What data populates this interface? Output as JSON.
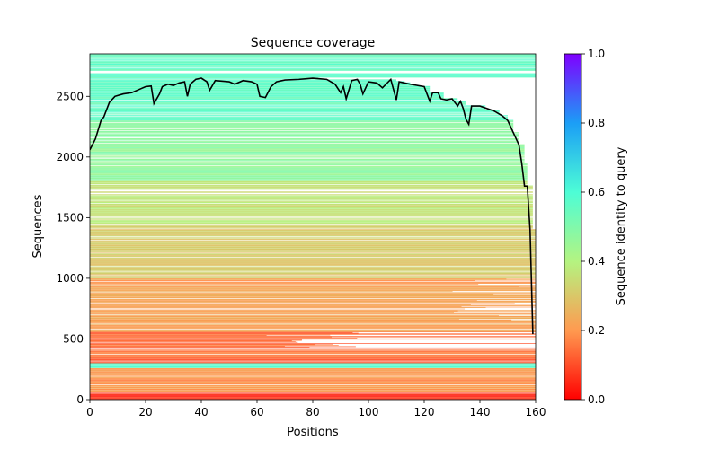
{
  "chart_data": {
    "type": "heatmap",
    "title": "Sequence coverage",
    "xlabel": "Positions",
    "ylabel": "Sequences",
    "xlim": [
      0,
      160
    ],
    "ylim": [
      0,
      2850
    ],
    "xticks": [
      0,
      20,
      40,
      60,
      80,
      100,
      120,
      140,
      160
    ],
    "yticks": [
      0,
      500,
      1000,
      1500,
      2000,
      2500
    ],
    "grid": false,
    "colorbar": {
      "label": "Sequence identity to query",
      "range": [
        0,
        1
      ],
      "ticks": [
        "0.0",
        "0.2",
        "0.4",
        "0.6",
        "0.8",
        "1.0"
      ],
      "colormap": "rainbow_r"
    },
    "identity_bands": [
      {
        "y0": 0,
        "y1": 60,
        "identity": 0.05
      },
      {
        "y0": 60,
        "y1": 260,
        "identity": 0.2
      },
      {
        "y0": 260,
        "y1": 300,
        "identity": 0.6
      },
      {
        "y0": 300,
        "y1": 340,
        "identity": 0.1
      },
      {
        "y0": 340,
        "y1": 420,
        "identity": 0.16
      },
      {
        "y0": 420,
        "y1": 560,
        "identity": 0.13
      },
      {
        "y0": 560,
        "y1": 1000,
        "identity": 0.22
      },
      {
        "y0": 1000,
        "y1": 1450,
        "identity": 0.3
      },
      {
        "y0": 1450,
        "y1": 1800,
        "identity": 0.37
      },
      {
        "y0": 1800,
        "y1": 2300,
        "identity": 0.47
      },
      {
        "y0": 2300,
        "y1": 2850,
        "identity": 0.56
      }
    ],
    "coverage_line": {
      "color": "#000000",
      "x": [
        0,
        2,
        4,
        5,
        7,
        9,
        12,
        15,
        18,
        20,
        22,
        23,
        25,
        26,
        28,
        30,
        32,
        34,
        35,
        36,
        38,
        40,
        42,
        43,
        45,
        50,
        52,
        55,
        58,
        60,
        61,
        63,
        65,
        67,
        70,
        75,
        80,
        85,
        88,
        90,
        91,
        92,
        94,
        96,
        97,
        98,
        100,
        103,
        105,
        108,
        110,
        111,
        113,
        115,
        120,
        122,
        123,
        125,
        126,
        128,
        130,
        132,
        133,
        134,
        135,
        136,
        137,
        140,
        145,
        148,
        150,
        152,
        154,
        155,
        156,
        157,
        158,
        159
      ],
      "y": [
        2060,
        2150,
        2300,
        2330,
        2450,
        2500,
        2520,
        2530,
        2560,
        2580,
        2585,
        2440,
        2520,
        2580,
        2600,
        2590,
        2610,
        2620,
        2500,
        2600,
        2640,
        2650,
        2620,
        2550,
        2630,
        2620,
        2600,
        2630,
        2620,
        2600,
        2500,
        2490,
        2580,
        2620,
        2635,
        2640,
        2650,
        2640,
        2600,
        2530,
        2580,
        2480,
        2630,
        2640,
        2600,
        2520,
        2620,
        2610,
        2570,
        2640,
        2470,
        2620,
        2610,
        2600,
        2580,
        2460,
        2530,
        2530,
        2480,
        2470,
        2480,
        2420,
        2460,
        2400,
        2310,
        2270,
        2420,
        2420,
        2380,
        2340,
        2300,
        2200,
        2100,
        1950,
        1760,
        1760,
        1400,
        540
      ]
    }
  }
}
